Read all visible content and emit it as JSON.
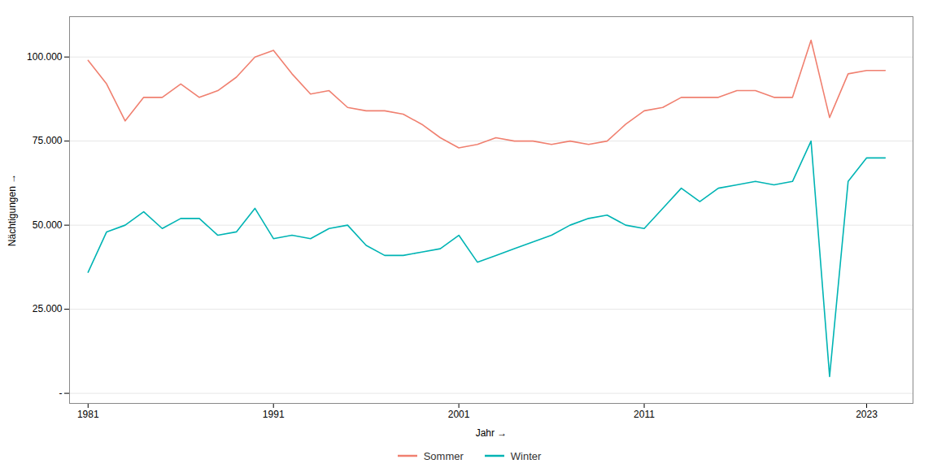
{
  "chart_data": {
    "type": "line",
    "xlabel": "Jahr",
    "ylabel": "Nächtigungen",
    "x": [
      1981,
      1982,
      1983,
      1984,
      1985,
      1986,
      1987,
      1988,
      1989,
      1990,
      1991,
      1992,
      1993,
      1994,
      1995,
      1996,
      1997,
      1998,
      1999,
      2000,
      2001,
      2002,
      2003,
      2004,
      2005,
      2006,
      2007,
      2008,
      2009,
      2010,
      2011,
      2012,
      2013,
      2014,
      2015,
      2016,
      2017,
      2018,
      2019,
      2020,
      2021,
      2022,
      2023,
      2024
    ],
    "series": [
      {
        "name": "Sommer",
        "color": "#F08070",
        "values": [
          99000,
          92000,
          81000,
          88000,
          88000,
          92000,
          88000,
          90000,
          94000,
          100000,
          102000,
          95000,
          89000,
          90000,
          85000,
          84000,
          84000,
          83000,
          80000,
          76000,
          73000,
          74000,
          76000,
          75000,
          75000,
          74000,
          75000,
          74000,
          75000,
          80000,
          84000,
          85000,
          88000,
          88000,
          88000,
          90000,
          90000,
          88000,
          88000,
          105000,
          82000,
          95000,
          96000,
          96000
        ]
      },
      {
        "name": "Winter",
        "color": "#00B4B4",
        "values": [
          36000,
          48000,
          50000,
          54000,
          49000,
          52000,
          52000,
          47000,
          48000,
          55000,
          46000,
          47000,
          46000,
          49000,
          50000,
          44000,
          41000,
          41000,
          42000,
          43000,
          47000,
          39000,
          41000,
          43000,
          45000,
          47000,
          50000,
          52000,
          53000,
          50000,
          49000,
          55000,
          61000,
          57000,
          61000,
          62000,
          63000,
          62000,
          63000,
          75000,
          5000,
          63000,
          70000,
          70000
        ]
      }
    ],
    "xlim": [
      1980.0,
      2025.5
    ],
    "xticks": [
      1981,
      1991,
      2001,
      2011,
      2023
    ],
    "ylim": [
      -3000,
      112000
    ],
    "yticks": [
      {
        "value": 0,
        "label": "-"
      },
      {
        "value": 25000,
        "label": "25.000"
      },
      {
        "value": 50000,
        "label": "50.000"
      },
      {
        "value": 75000,
        "label": "75.000"
      },
      {
        "value": 100000,
        "label": "100.000"
      }
    ],
    "grid": "y",
    "legend": "bottom"
  }
}
